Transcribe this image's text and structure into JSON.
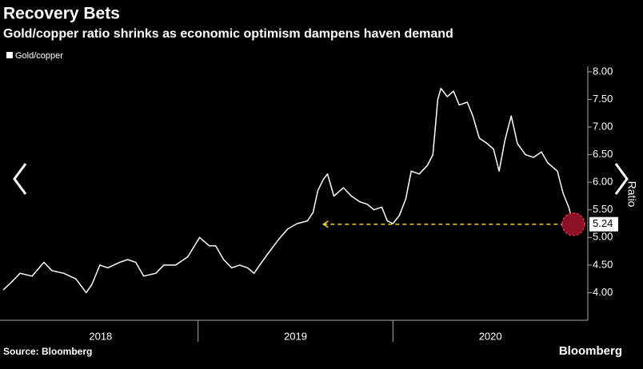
{
  "chart_data": {
    "type": "line",
    "title": "Recovery Bets",
    "subtitle": "Gold/copper ratio shrinks as economic optimism dampens haven demand",
    "y_axis_label": "Ratio",
    "source": "Source: Bloomberg",
    "brand": "Bloomberg",
    "xlim": [
      2018,
      2021
    ],
    "xticks": [
      {
        "value": 2018,
        "label": "2018"
      },
      {
        "value": 2019,
        "label": "2019"
      },
      {
        "value": 2020,
        "label": "2020"
      }
    ],
    "ylim": [
      3.5,
      8.1
    ],
    "yticks": [
      {
        "value": 4,
        "label": "4.00"
      },
      {
        "value": 4.5,
        "label": "4.50"
      },
      {
        "value": 5,
        "label": "5.00"
      },
      {
        "value": 5.5,
        "label": "5.50"
      },
      {
        "value": 6,
        "label": "6.00"
      },
      {
        "value": 6.5,
        "label": "6.50"
      },
      {
        "value": 7,
        "label": "7.00"
      },
      {
        "value": 7.5,
        "label": "7.50"
      },
      {
        "value": 8,
        "label": "8.00"
      }
    ],
    "highlight_from_x": 2019.643,
    "x": [
      2018.0,
      2018.045,
      2018.086,
      2018.148,
      2018.209,
      2018.25,
      2018.311,
      2018.373,
      2018.426,
      2018.455,
      2018.496,
      2018.537,
      2018.598,
      2018.639,
      2018.68,
      2018.721,
      2018.783,
      2018.824,
      2018.885,
      2018.947,
      2019.008,
      2019.057,
      2019.09,
      2019.131,
      2019.172,
      2019.213,
      2019.254,
      2019.287,
      2019.316,
      2019.357,
      2019.41,
      2019.459,
      2019.508,
      2019.561,
      2019.59,
      2019.615,
      2019.643,
      2019.664,
      2019.697,
      2019.746,
      2019.787,
      2019.828,
      2019.869,
      2019.902,
      2019.943,
      2019.971,
      2020.0,
      2020.033,
      2020.066,
      2020.094,
      2020.135,
      2020.176,
      2020.205,
      2020.23,
      2020.246,
      2020.279,
      2020.311,
      2020.34,
      2020.381,
      2020.41,
      2020.443,
      2020.484,
      2020.516,
      2020.545,
      2020.574,
      2020.607,
      2020.639,
      2020.68,
      2020.721,
      2020.762,
      2020.795,
      2020.844,
      2020.873,
      2020.902,
      2020.926
    ],
    "series": [
      {
        "name": "Gold/copper",
        "color": "#ffffff",
        "values": [
          4.05,
          4.2,
          4.35,
          4.3,
          4.55,
          4.4,
          4.35,
          4.25,
          4.0,
          4.15,
          4.5,
          4.45,
          4.55,
          4.6,
          4.55,
          4.3,
          4.35,
          4.5,
          4.5,
          4.65,
          5.0,
          4.85,
          4.85,
          4.6,
          4.45,
          4.5,
          4.45,
          4.35,
          4.5,
          4.7,
          4.95,
          5.15,
          5.25,
          5.3,
          5.45,
          5.85,
          6.05,
          6.15,
          5.75,
          5.9,
          5.75,
          5.65,
          5.6,
          5.5,
          5.55,
          5.3,
          5.25,
          5.4,
          5.7,
          6.2,
          6.15,
          6.3,
          6.5,
          7.5,
          7.7,
          7.55,
          7.65,
          7.4,
          7.45,
          7.2,
          6.8,
          6.7,
          6.6,
          6.2,
          6.75,
          7.2,
          6.7,
          6.5,
          6.45,
          6.55,
          6.35,
          6.2,
          5.8,
          5.55,
          5.24
        ]
      }
    ]
  }
}
